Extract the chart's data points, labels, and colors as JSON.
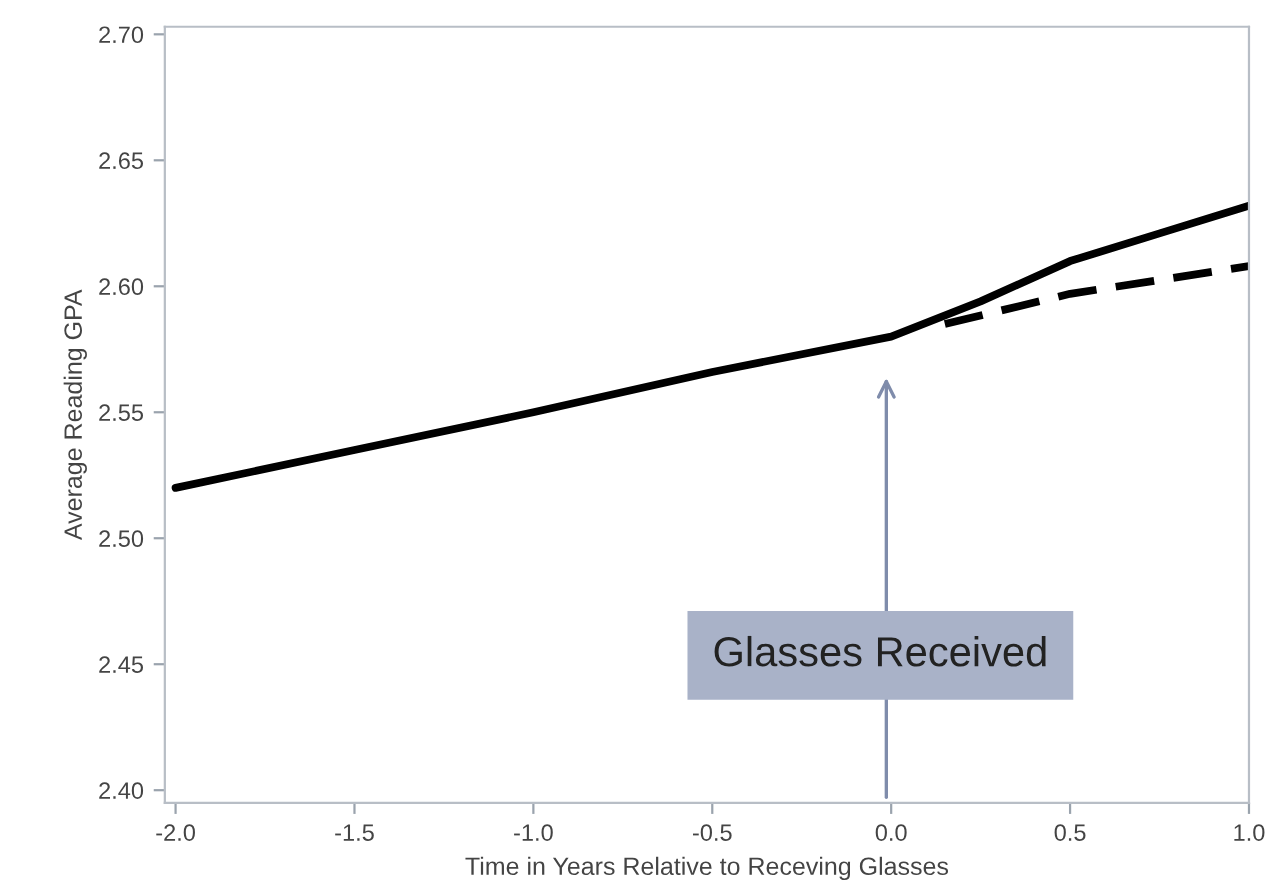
{
  "chart_data": {
    "type": "line",
    "xlabel": "Time in Years Relative to Receving Glasses",
    "ylabel": "Average Reading GPA",
    "series": [
      {
        "color": "#000000",
        "line_style": "solid",
        "x": [
          -2.0,
          -1.5,
          -1.0,
          -0.5,
          0.0,
          0.25,
          0.5,
          0.75,
          1.0
        ],
        "values": [
          2.52,
          2.535,
          2.55,
          2.566,
          2.58,
          2.594,
          2.61,
          2.621,
          2.632
        ]
      },
      {
        "color": "#000000",
        "line_style": "dashed",
        "x": [
          0.15,
          0.5,
          1.0
        ],
        "values": [
          2.585,
          2.597,
          2.608
        ]
      }
    ],
    "annotations": [
      "Glasses Received"
    ],
    "xlim": [
      -2.03,
      1.0
    ],
    "ylim": [
      2.395,
      2.703
    ],
    "xticks": [
      {
        "value": -2.0,
        "label": "-2.0"
      },
      {
        "value": -1.5,
        "label": "-1.5"
      },
      {
        "value": -1.0,
        "label": "-1.0"
      },
      {
        "value": -0.5,
        "label": "-0.5"
      },
      {
        "value": 0.0,
        "label": "0.0"
      },
      {
        "value": 0.5,
        "label": "0.5"
      },
      {
        "value": 1.0,
        "label": "1.0"
      }
    ],
    "yticks": [
      {
        "value": 2.4,
        "label": "2.40"
      },
      {
        "value": 2.45,
        "label": "2.45"
      },
      {
        "value": 2.5,
        "label": "2.50"
      },
      {
        "value": 2.55,
        "label": "2.55"
      },
      {
        "value": 2.6,
        "label": "2.60"
      },
      {
        "value": 2.65,
        "label": "2.65"
      },
      {
        "value": 2.7,
        "label": "2.70"
      }
    ],
    "grid": false,
    "legend": false,
    "marker": "none"
  }
}
